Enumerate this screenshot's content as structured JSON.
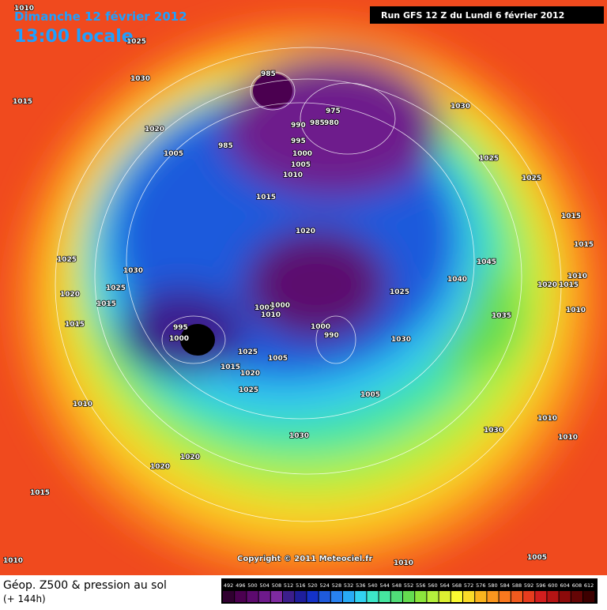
{
  "header": {
    "date": "Dimanche 12 février 2012",
    "time": "13:00 locale",
    "run": "Run GFS 12 Z du Lundi 6 février 2012"
  },
  "map": {
    "isobar_labels": [
      "1010",
      "1025",
      "1030",
      "1015",
      "1020",
      "1005",
      "985",
      "975",
      "985",
      "980",
      "990",
      "995",
      "985",
      "1000",
      "1005",
      "1010",
      "1015",
      "1020",
      "1030",
      "1025",
      "1025",
      "1015",
      "1015",
      "1045",
      "1040",
      "1030",
      "1025",
      "1025",
      "1020",
      "1015",
      "1015",
      "1010",
      "1020",
      "1015",
      "1010",
      "1025",
      "1035",
      "1005",
      "1000",
      "1010",
      "995",
      "1000",
      "1000",
      "990",
      "1025",
      "1015",
      "1020",
      "1005",
      "1030",
      "1005",
      "1025",
      "1010",
      "1010",
      "1030",
      "1030",
      "1010",
      "1020",
      "1020",
      "1015",
      "1010",
      "1010",
      "1005"
    ],
    "copyright": "Copyright © 2011 Meteociel.fr"
  },
  "footer": {
    "title": "Géop. Z500 & pression au sol",
    "subtitle": "(+ 144h)",
    "scale": {
      "labels": [
        492,
        496,
        500,
        504,
        508,
        512,
        516,
        520,
        524,
        528,
        532,
        536,
        540,
        544,
        548,
        552,
        556,
        560,
        564,
        568,
        572,
        576,
        580,
        584,
        588,
        592,
        596,
        600,
        604,
        608,
        612
      ],
      "colors": [
        "#300030",
        "#4b0050",
        "#5c0a6e",
        "#6e1a8c",
        "#7d2aa0",
        "#3c1e8c",
        "#1e1e9c",
        "#1432c8",
        "#1e5adc",
        "#2882f0",
        "#28aaf5",
        "#32d2f0",
        "#3ce6c8",
        "#46e6a0",
        "#50dc78",
        "#64dc50",
        "#8ce63c",
        "#b4f03c",
        "#dcf032",
        "#fafa32",
        "#fadc28",
        "#fab41e",
        "#fa961e",
        "#fa781e",
        "#f05a1e",
        "#e63c1e",
        "#d21e1e",
        "#b41414",
        "#8c0a0a",
        "#640505",
        "#3c0000"
      ]
    }
  }
}
